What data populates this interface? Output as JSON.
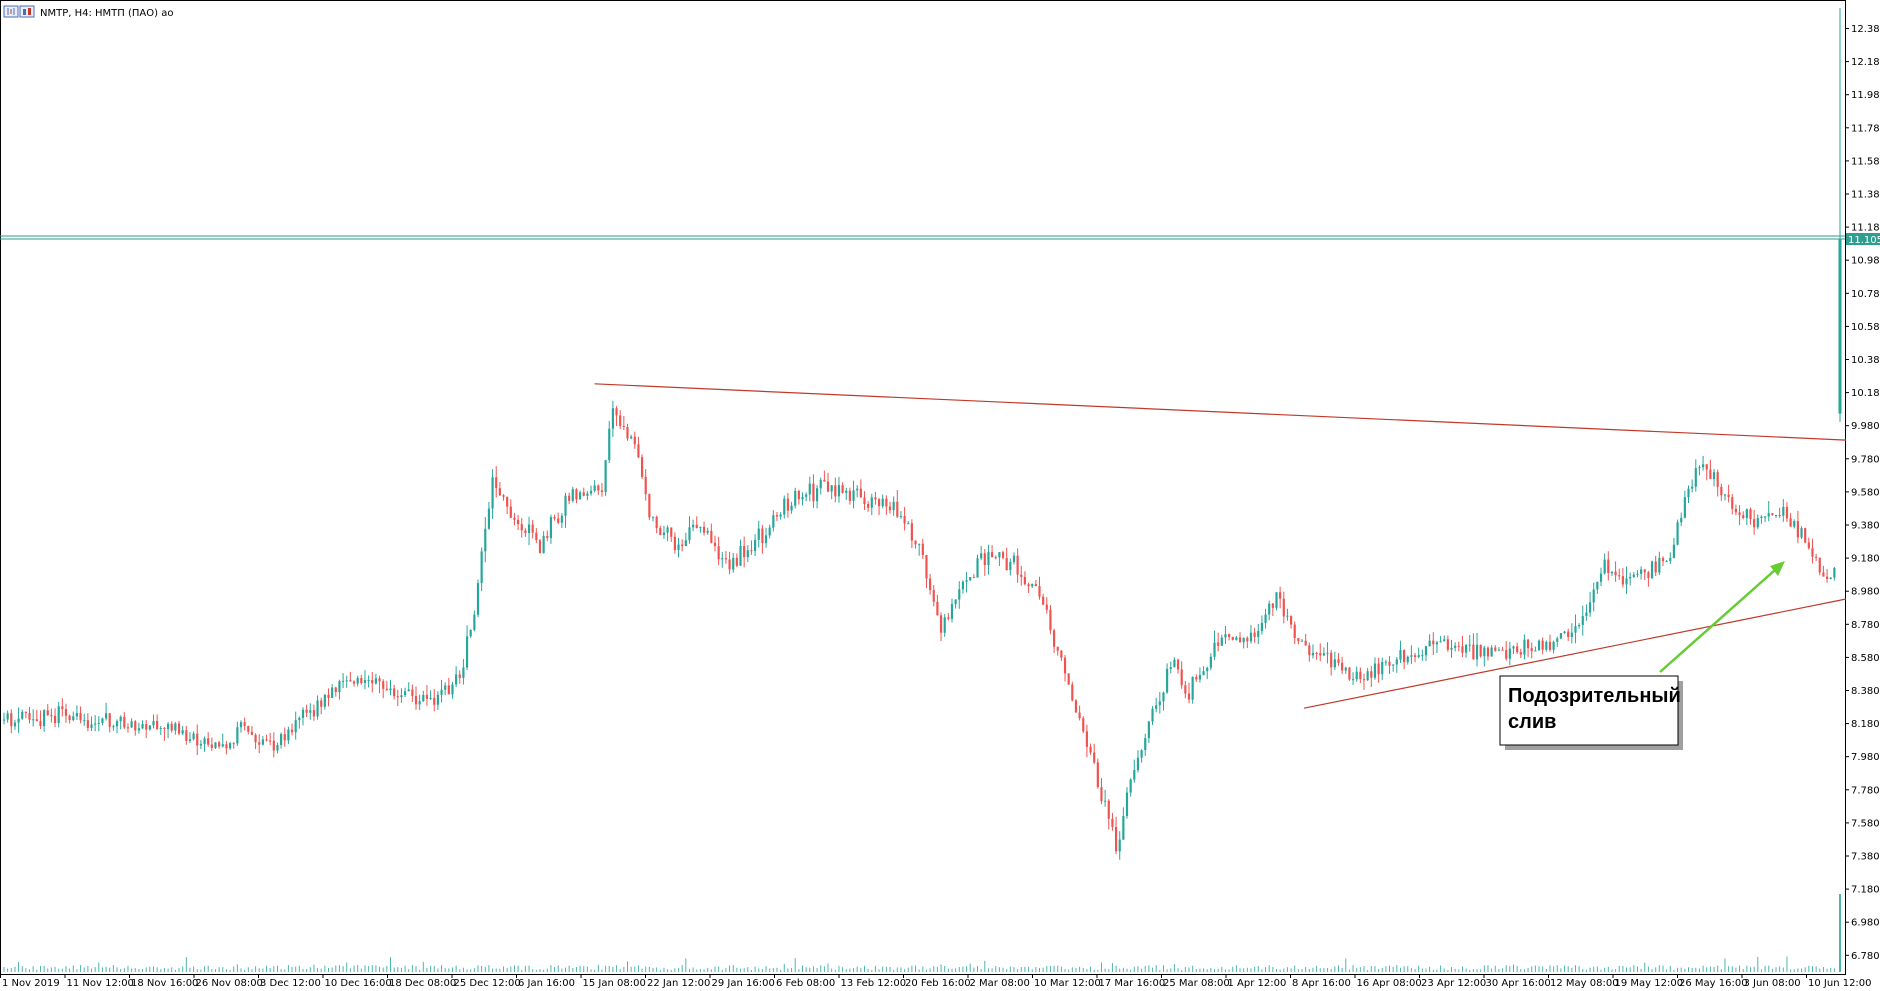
{
  "window": {
    "title": "NMTP, H4:  НМТП (ПАО) ао"
  },
  "colors": {
    "bull": "#26a69a",
    "bear": "#ef5350",
    "trendline": "#c0392b",
    "price_line": "#2e9e8f",
    "volume": "#4db6ac",
    "arrow": "#66cc33",
    "axis": "#000000"
  },
  "annotation": {
    "text_line1": "Подозрительный",
    "text_line2": "слив"
  },
  "chart_data": {
    "type": "candlestick",
    "symbol": "NMTP",
    "timeframe": "H4",
    "ylim": [
      6.58,
      12.58
    ],
    "current_price": "11.105",
    "y_ticks": [
      "12.380",
      "12.180",
      "11.980",
      "11.780",
      "11.580",
      "11.380",
      "11.180",
      "10.980",
      "10.780",
      "10.580",
      "10.380",
      "10.180",
      "9.980",
      "9.780",
      "9.580",
      "9.380",
      "9.180",
      "8.980",
      "8.780",
      "8.580",
      "8.380",
      "8.180",
      "7.980",
      "7.780",
      "7.580",
      "7.380",
      "7.180",
      "6.980",
      "6.780"
    ],
    "x_ticks": [
      "1 Nov 2019",
      "11 Nov 12:00",
      "18 Nov 16:00",
      "26 Nov 08:00",
      "3 Dec 12:00",
      "10 Dec 16:00",
      "18 Dec 08:00",
      "25 Dec 12:00",
      "6 Jan 16:00",
      "15 Jan 08:00",
      "22 Jan 12:00",
      "29 Jan 16:00",
      "6 Feb 08:00",
      "13 Feb 12:00",
      "20 Feb 16:00",
      "2 Mar 08:00",
      "10 Mar 12:00",
      "17 Mar 16:00",
      "25 Mar 08:00",
      "1 Apr 12:00",
      "8 Apr 16:00",
      "16 Apr 08:00",
      "23 Apr 12:00",
      "30 Apr 16:00",
      "12 May 08:00",
      "19 May 12:00",
      "26 May 16:00",
      "3 Jun 08:00",
      "10 Jun 12:00"
    ],
    "price_profile": [
      [
        0,
        8.2
      ],
      [
        15,
        8.22
      ],
      [
        30,
        8.19
      ],
      [
        45,
        8.15
      ],
      [
        55,
        8.08
      ],
      [
        63,
        8.03
      ],
      [
        66,
        8.2
      ],
      [
        72,
        8.05
      ],
      [
        78,
        8.1
      ],
      [
        85,
        8.25
      ],
      [
        95,
        8.45
      ],
      [
        105,
        8.38
      ],
      [
        118,
        8.33
      ],
      [
        126,
        8.45
      ],
      [
        130,
        8.85
      ],
      [
        135,
        9.65
      ],
      [
        140,
        9.45
      ],
      [
        148,
        9.25
      ],
      [
        156,
        9.55
      ],
      [
        165,
        9.6
      ],
      [
        168,
        10.05
      ],
      [
        174,
        9.85
      ],
      [
        178,
        9.45
      ],
      [
        185,
        9.25
      ],
      [
        192,
        9.35
      ],
      [
        200,
        9.15
      ],
      [
        210,
        9.35
      ],
      [
        215,
        9.5
      ],
      [
        225,
        9.6
      ],
      [
        235,
        9.55
      ],
      [
        245,
        9.5
      ],
      [
        252,
        9.25
      ],
      [
        258,
        8.75
      ],
      [
        262,
        8.95
      ],
      [
        270,
        9.2
      ],
      [
        278,
        9.15
      ],
      [
        285,
        8.95
      ],
      [
        290,
        8.6
      ],
      [
        296,
        8.2
      ],
      [
        302,
        7.75
      ],
      [
        306,
        7.45
      ],
      [
        310,
        7.8
      ],
      [
        316,
        8.25
      ],
      [
        322,
        8.55
      ],
      [
        326,
        8.35
      ],
      [
        334,
        8.7
      ],
      [
        342,
        8.65
      ],
      [
        350,
        8.95
      ],
      [
        356,
        8.7
      ],
      [
        364,
        8.55
      ],
      [
        372,
        8.45
      ],
      [
        382,
        8.55
      ],
      [
        395,
        8.65
      ],
      [
        410,
        8.6
      ],
      [
        425,
        8.65
      ],
      [
        435,
        8.8
      ],
      [
        440,
        9.15
      ],
      [
        445,
        9.05
      ],
      [
        452,
        9.1
      ],
      [
        458,
        9.2
      ],
      [
        463,
        9.6
      ],
      [
        468,
        9.75
      ],
      [
        474,
        9.5
      ],
      [
        482,
        9.4
      ],
      [
        490,
        9.45
      ],
      [
        496,
        9.25
      ],
      [
        500,
        9.05
      ],
      [
        503,
        9.1
      ]
    ],
    "final_spike": {
      "open": 10.05,
      "high": 12.5,
      "low": 10.0,
      "close": 11.105
    },
    "trendlines": [
      {
        "from": [
          "15 Jan 08:00",
          10.23
        ],
        "to": [
          "10 Jun 12:00",
          9.89
        ]
      },
      {
        "from": [
          "8 Apr 16:00",
          8.27
        ],
        "to": [
          "10 Jun 12:00",
          8.93
        ]
      }
    ]
  }
}
